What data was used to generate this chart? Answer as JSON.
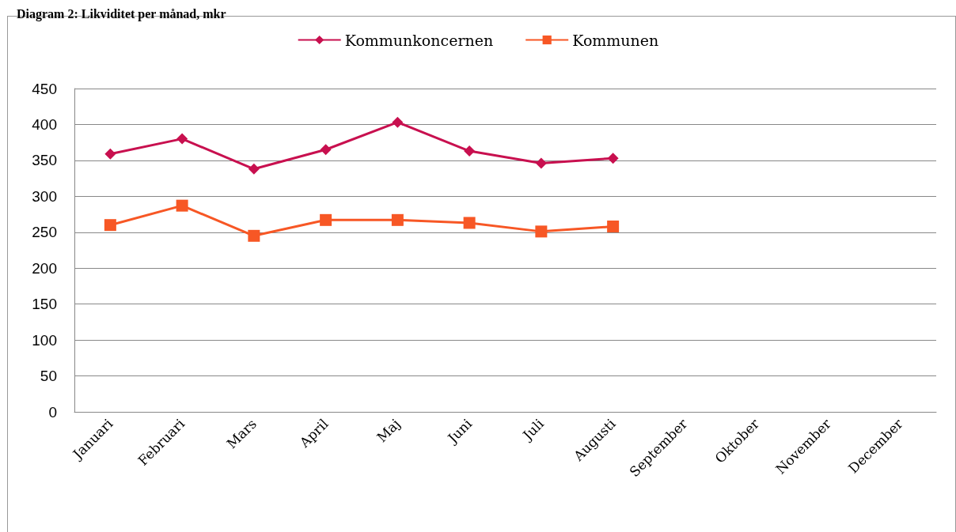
{
  "chart_data": {
    "type": "line",
    "title": "Diagram 2: Likviditet per månad, mkr",
    "categories": [
      "Januari",
      "Februari",
      "Mars",
      "April",
      "Maj",
      "Juni",
      "Juli",
      "Augusti",
      "September",
      "Oktober",
      "November",
      "December"
    ],
    "series": [
      {
        "name": "Kommunkoncernen",
        "color": "#c8104f",
        "marker": "diamond",
        "values": [
          359,
          380,
          338,
          365,
          403,
          363,
          346,
          353,
          null,
          null,
          null,
          null
        ]
      },
      {
        "name": "Kommunen",
        "color": "#f75725",
        "marker": "square",
        "values": [
          260,
          287,
          245,
          267,
          267,
          263,
          251,
          258,
          null,
          null,
          null,
          null
        ]
      }
    ],
    "ylim": [
      0,
      450
    ],
    "yticks": [
      0,
      50,
      100,
      150,
      200,
      250,
      300,
      350,
      400,
      450
    ],
    "grid": "y",
    "legend": "top",
    "line_style": "solid"
  }
}
